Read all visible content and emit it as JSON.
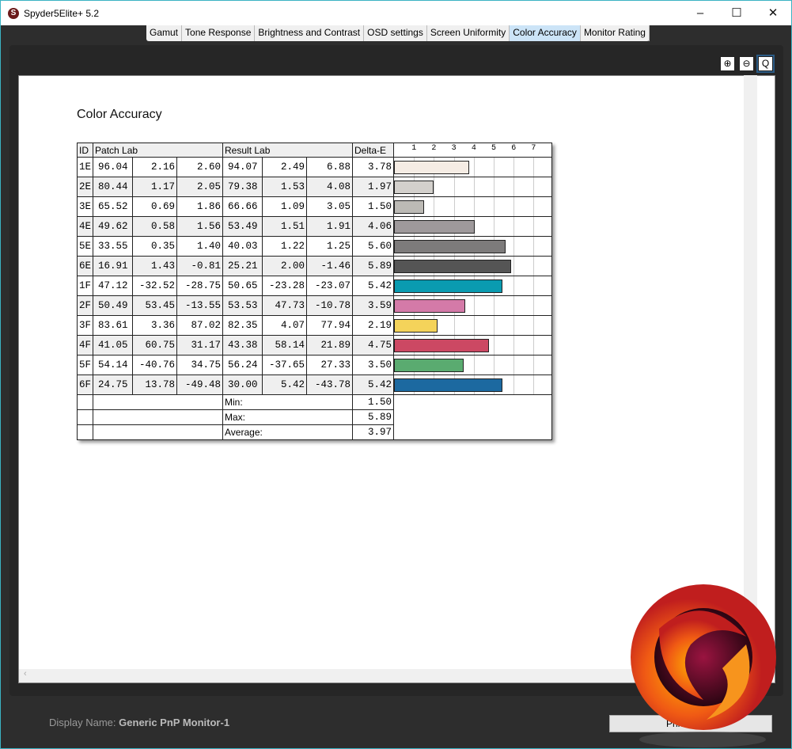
{
  "window": {
    "title": "Spyder5Elite+ 5.2",
    "minimize": "–",
    "maximize": "☐",
    "close": "✕"
  },
  "tabs": [
    {
      "label": "Gamut"
    },
    {
      "label": "Tone Response"
    },
    {
      "label": "Brightness and Contrast"
    },
    {
      "label": "OSD settings"
    },
    {
      "label": "Screen Uniformity"
    },
    {
      "label": "Color Accuracy",
      "active": true
    },
    {
      "label": "Monitor Rating"
    }
  ],
  "zoom": {
    "in": "⊕",
    "out": "⊖",
    "fit": "Q"
  },
  "report": {
    "title": "Color Accuracy",
    "headers": {
      "id": "ID",
      "patch": "Patch Lab",
      "result": "Result Lab",
      "delta": "Delta-E"
    },
    "ticks": [
      "1",
      "2",
      "3",
      "4",
      "5",
      "6",
      "7"
    ],
    "rows": [
      {
        "id": "1E",
        "patch": [
          "96.04",
          "2.16",
          "2.60"
        ],
        "result": [
          "94.07",
          "2.49",
          "6.88"
        ],
        "delta": "3.78",
        "color": "#f5ece4"
      },
      {
        "id": "2E",
        "patch": [
          "80.44",
          "1.17",
          "2.05"
        ],
        "result": [
          "79.38",
          "1.53",
          "4.08"
        ],
        "delta": "1.97",
        "color": "#d3d0cc"
      },
      {
        "id": "3E",
        "patch": [
          "65.52",
          "0.69",
          "1.86"
        ],
        "result": [
          "66.66",
          "1.09",
          "3.05"
        ],
        "delta": "1.50",
        "color": "#bcbab5"
      },
      {
        "id": "4E",
        "patch": [
          "49.62",
          "0.58",
          "1.56"
        ],
        "result": [
          "53.49",
          "1.51",
          "1.91"
        ],
        "delta": "4.06",
        "color": "#9e999b"
      },
      {
        "id": "5E",
        "patch": [
          "33.55",
          "0.35",
          "1.40"
        ],
        "result": [
          "40.03",
          "1.22",
          "1.25"
        ],
        "delta": "5.60",
        "color": "#7d7b7b"
      },
      {
        "id": "6E",
        "patch": [
          "16.91",
          "1.43",
          "-0.81"
        ],
        "result": [
          "25.21",
          "2.00",
          "-1.46"
        ],
        "delta": "5.89",
        "color": "#555555"
      },
      {
        "id": "1F",
        "patch": [
          "47.12",
          "-32.52",
          "-28.75"
        ],
        "result": [
          "50.65",
          "-23.28",
          "-23.07"
        ],
        "delta": "5.42",
        "color": "#0a9bb0"
      },
      {
        "id": "2F",
        "patch": [
          "50.49",
          "53.45",
          "-13.55"
        ],
        "result": [
          "53.53",
          "47.73",
          "-10.78"
        ],
        "delta": "3.59",
        "color": "#d47aa8"
      },
      {
        "id": "3F",
        "patch": [
          "83.61",
          "3.36",
          "87.02"
        ],
        "result": [
          "82.35",
          "4.07",
          "77.94"
        ],
        "delta": "2.19",
        "color": "#f4d35a"
      },
      {
        "id": "4F",
        "patch": [
          "41.05",
          "60.75",
          "31.17"
        ],
        "result": [
          "43.38",
          "58.14",
          "21.89"
        ],
        "delta": "4.75",
        "color": "#cc4863"
      },
      {
        "id": "5F",
        "patch": [
          "54.14",
          "-40.76",
          "34.75"
        ],
        "result": [
          "56.24",
          "-37.65",
          "27.33"
        ],
        "delta": "3.50",
        "color": "#5aab70"
      },
      {
        "id": "6F",
        "patch": [
          "24.75",
          "13.78",
          "-49.48"
        ],
        "result": [
          "30.00",
          "5.42",
          "-43.78"
        ],
        "delta": "5.42",
        "color": "#1c69a0"
      }
    ],
    "summary": [
      {
        "label": "Min:",
        "value": "1.50"
      },
      {
        "label": "Max:",
        "value": "5.89"
      },
      {
        "label": "Average:",
        "value": "3.97"
      }
    ]
  },
  "footer": {
    "display_label": "Display Name:",
    "display_name": "Generic PnP Monitor-1",
    "print_button": "Print / Save"
  }
}
